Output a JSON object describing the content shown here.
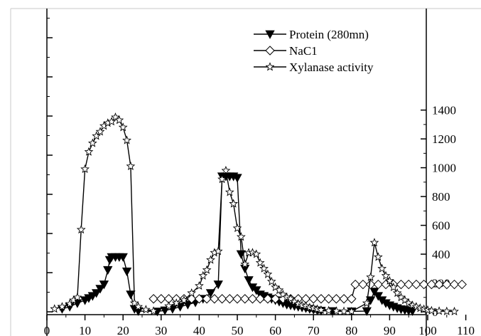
{
  "chart_data": {
    "type": "line",
    "x_ticks": [
      "0",
      "10",
      "20",
      "30",
      "40",
      "50",
      "60",
      "70",
      "80",
      "90",
      "100",
      "110"
    ],
    "y2_ticks": [
      "0",
      "200",
      "400",
      "600",
      "800",
      "1000",
      "1200",
      "1400"
    ],
    "xlim": [
      0,
      110
    ],
    "y2lim": [
      0,
      1400
    ],
    "y_scale": "right axis 0–1400; left axis unlabeled",
    "legend_position": "top-right",
    "series": [
      {
        "name": "Protein (280mn)",
        "marker": "filled-triangle-down",
        "axis": "right",
        "points": [
          [
            4,
            20
          ],
          [
            6,
            35
          ],
          [
            8,
            60
          ],
          [
            10,
            80
          ],
          [
            11,
            95
          ],
          [
            12,
            110
          ],
          [
            13,
            130
          ],
          [
            14,
            160
          ],
          [
            15,
            190
          ],
          [
            16,
            290
          ],
          [
            16.5,
            360
          ],
          [
            17,
            380
          ],
          [
            18,
            380
          ],
          [
            19,
            380
          ],
          [
            20,
            380
          ],
          [
            21,
            280
          ],
          [
            22,
            120
          ],
          [
            23,
            20
          ],
          [
            24,
            5
          ],
          [
            29,
            2
          ],
          [
            31,
            10
          ],
          [
            33,
            20
          ],
          [
            35,
            35
          ],
          [
            37,
            50
          ],
          [
            39,
            65
          ],
          [
            41,
            90
          ],
          [
            43,
            130
          ],
          [
            45,
            190
          ],
          [
            46,
            940
          ],
          [
            47,
            940
          ],
          [
            48,
            940
          ],
          [
            49,
            940
          ],
          [
            50,
            930
          ],
          [
            51,
            400
          ],
          [
            52,
            300
          ],
          [
            53,
            220
          ],
          [
            54,
            170
          ],
          [
            55,
            150
          ],
          [
            56,
            120
          ],
          [
            57,
            110
          ],
          [
            58,
            100
          ],
          [
            59,
            90
          ],
          [
            60,
            80
          ],
          [
            61,
            70
          ],
          [
            62,
            60
          ],
          [
            63,
            50
          ],
          [
            64,
            45
          ],
          [
            65,
            40
          ],
          [
            66,
            35
          ],
          [
            67,
            30
          ],
          [
            68,
            25
          ],
          [
            69,
            20
          ],
          [
            70,
            15
          ],
          [
            71,
            10
          ],
          [
            72,
            8
          ],
          [
            75,
            5
          ],
          [
            80,
            3
          ],
          [
            84,
            5
          ],
          [
            85,
            80
          ],
          [
            86,
            140
          ],
          [
            87,
            110
          ],
          [
            88,
            80
          ],
          [
            89,
            60
          ],
          [
            90,
            45
          ],
          [
            91,
            35
          ],
          [
            92,
            25
          ],
          [
            93,
            18
          ],
          [
            94,
            12
          ],
          [
            95,
            8
          ],
          [
            96,
            5
          ]
        ]
      },
      {
        "name": "NaC1",
        "marker": "open-diamond",
        "axis": "right",
        "points": [
          [
            28,
            90
          ],
          [
            30,
            90
          ],
          [
            32,
            90
          ],
          [
            34,
            90
          ],
          [
            36,
            90
          ],
          [
            38,
            90
          ],
          [
            40,
            90
          ],
          [
            42,
            90
          ],
          [
            44,
            90
          ],
          [
            46,
            90
          ],
          [
            48,
            90
          ],
          [
            50,
            90
          ],
          [
            52,
            90
          ],
          [
            54,
            90
          ],
          [
            56,
            90
          ],
          [
            58,
            90
          ],
          [
            60,
            90
          ],
          [
            62,
            90
          ],
          [
            64,
            90
          ],
          [
            66,
            90
          ],
          [
            68,
            90
          ],
          [
            70,
            90
          ],
          [
            72,
            90
          ],
          [
            74,
            90
          ],
          [
            76,
            90
          ],
          [
            78,
            90
          ],
          [
            80,
            90
          ],
          [
            81,
            190
          ],
          [
            83,
            190
          ],
          [
            85,
            190
          ],
          [
            87,
            190
          ],
          [
            89,
            190
          ],
          [
            91,
            190
          ],
          [
            93,
            190
          ],
          [
            95,
            190
          ],
          [
            97,
            190
          ],
          [
            99,
            190
          ],
          [
            101,
            190
          ],
          [
            103,
            190
          ],
          [
            105,
            190
          ],
          [
            107,
            190
          ],
          [
            109,
            190
          ]
        ]
      },
      {
        "name": "Xylanase activity",
        "marker": "open-star",
        "axis": "right",
        "points": [
          [
            2,
            20
          ],
          [
            4,
            35
          ],
          [
            6,
            55
          ],
          [
            7,
            80
          ],
          [
            8,
            100
          ],
          [
            9,
            570
          ],
          [
            10,
            990
          ],
          [
            11,
            1110
          ],
          [
            12,
            1170
          ],
          [
            13,
            1220
          ],
          [
            14,
            1250
          ],
          [
            15,
            1290
          ],
          [
            16,
            1310
          ],
          [
            17,
            1320
          ],
          [
            18,
            1350
          ],
          [
            19,
            1330
          ],
          [
            20,
            1280
          ],
          [
            21,
            1190
          ],
          [
            22,
            1010
          ],
          [
            23,
            60
          ],
          [
            24,
            35
          ],
          [
            26,
            15
          ],
          [
            28,
            5
          ],
          [
            32,
            40
          ],
          [
            34,
            60
          ],
          [
            36,
            80
          ],
          [
            38,
            130
          ],
          [
            40,
            180
          ],
          [
            41,
            250
          ],
          [
            42,
            290
          ],
          [
            43,
            360
          ],
          [
            44,
            410
          ],
          [
            45,
            420
          ],
          [
            46,
            920
          ],
          [
            47,
            980
          ],
          [
            48,
            830
          ],
          [
            49,
            750
          ],
          [
            50,
            580
          ],
          [
            51,
            520
          ],
          [
            52,
            330
          ],
          [
            53,
            410
          ],
          [
            54,
            410
          ],
          [
            55,
            400
          ],
          [
            56,
            340
          ],
          [
            57,
            300
          ],
          [
            58,
            260
          ],
          [
            59,
            210
          ],
          [
            60,
            170
          ],
          [
            61,
            150
          ],
          [
            62,
            120
          ],
          [
            63,
            100
          ],
          [
            64,
            90
          ],
          [
            65,
            70
          ],
          [
            66,
            55
          ],
          [
            67,
            45
          ],
          [
            68,
            40
          ],
          [
            69,
            30
          ],
          [
            70,
            25
          ],
          [
            71,
            18
          ],
          [
            72,
            12
          ],
          [
            74,
            8
          ],
          [
            76,
            5
          ],
          [
            78,
            3
          ],
          [
            80,
            2
          ],
          [
            84,
            60
          ],
          [
            85,
            240
          ],
          [
            86,
            480
          ],
          [
            87,
            380
          ],
          [
            88,
            300
          ],
          [
            89,
            250
          ],
          [
            90,
            215
          ],
          [
            91,
            170
          ],
          [
            92,
            130
          ],
          [
            93,
            100
          ],
          [
            94,
            80
          ],
          [
            95,
            60
          ],
          [
            96,
            45
          ],
          [
            97,
            35
          ],
          [
            98,
            25
          ],
          [
            99,
            18
          ],
          [
            100,
            12
          ],
          [
            101,
            8
          ],
          [
            103,
            5
          ],
          [
            105,
            3
          ],
          [
            107,
            2
          ]
        ]
      }
    ]
  }
}
